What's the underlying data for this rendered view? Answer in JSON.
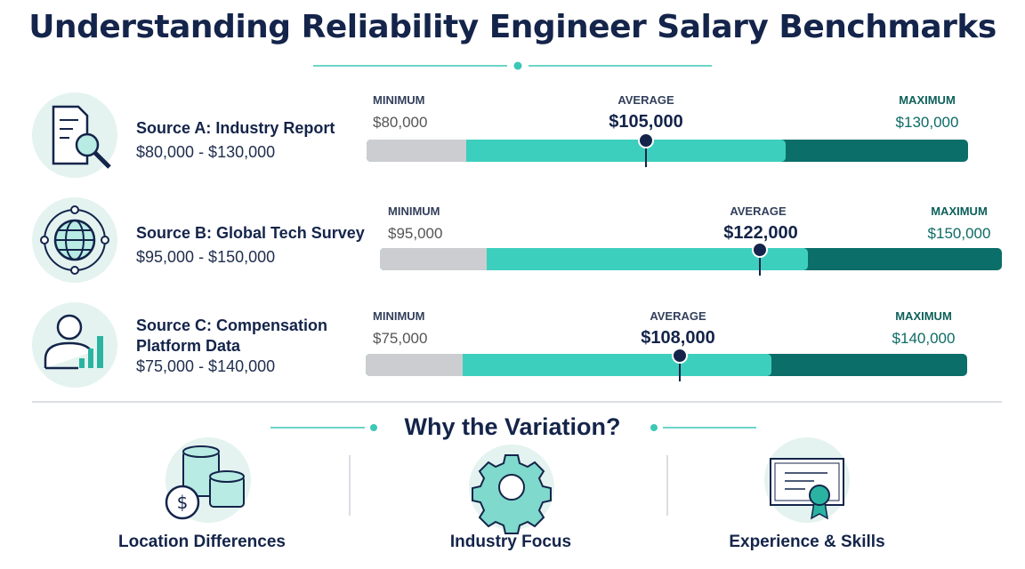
{
  "header": {
    "title": "Understanding Reliability Engineer Salary Benchmarks"
  },
  "sources": [
    {
      "name": "Source A: Industry Report",
      "range": "$80,000 - $130,000",
      "minimum_label": "MINIMUM",
      "minimum": "$80,000",
      "average_label": "AVERAGE",
      "average": "$105,000",
      "maximum_label": "MAXIMUM",
      "maximum": "$130,000"
    },
    {
      "name": "Source B: Global Tech Survey",
      "range": "$95,000 - $150,000",
      "minimum_label": "MINIMUM",
      "minimum": "$95,000",
      "average_label": "AVERAGE",
      "average": "$122,000",
      "maximum_label": "MAXIMUM",
      "maximum": "$150,000"
    },
    {
      "name": "Source C: Compensation Platform Data",
      "range": "$75,000 - $140,000",
      "minimum_label": "MINIMUM",
      "minimum": "$75,000",
      "average_label": "AVERAGE",
      "average": "$108,000",
      "maximum_label": "MAXIMUM",
      "maximum": "$140,000"
    }
  ],
  "variation": {
    "title": "Why the Variation?",
    "factors": [
      "Location Differences",
      "Industry Focus",
      "Experience & Skills"
    ]
  }
}
